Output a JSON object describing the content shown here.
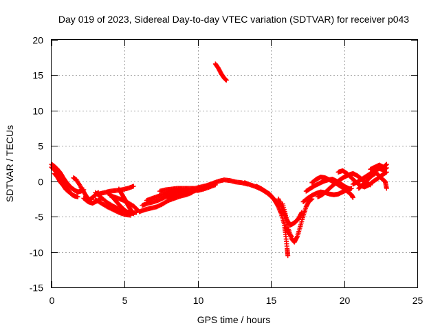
{
  "chart_data": {
    "type": "scatter",
    "title": "Day 019 of 2023, Sidereal Day-to-day VTEC variation (SDTVAR) for receiver p043",
    "xlabel": "GPS time / hours",
    "ylabel": "SDTVAR / TECUs",
    "xlim": [
      0,
      25
    ],
    "ylim": [
      -15,
      20
    ],
    "xticks": [
      0,
      5,
      10,
      15,
      20,
      25
    ],
    "yticks": [
      -15,
      -10,
      -5,
      0,
      5,
      10,
      15,
      20
    ],
    "grid": true,
    "marker": "+",
    "series": [
      {
        "name": "SDTVAR",
        "color": "#ff0000",
        "tracks": [
          [
            [
              0.0,
              2.4
            ],
            [
              0.2,
              2.1
            ],
            [
              0.4,
              1.7
            ],
            [
              0.6,
              1.2
            ],
            [
              0.8,
              0.5
            ],
            [
              1.0,
              -0.1
            ],
            [
              1.2,
              -0.6
            ],
            [
              1.4,
              -1.0
            ],
            [
              1.6,
              -1.3
            ],
            [
              1.8,
              -1.5
            ],
            [
              2.0,
              -1.4
            ],
            [
              2.2,
              -1.2
            ]
          ],
          [
            [
              0.0,
              2.0
            ],
            [
              0.2,
              1.6
            ],
            [
              0.4,
              1.1
            ],
            [
              0.6,
              0.4
            ],
            [
              0.8,
              -0.3
            ],
            [
              1.0,
              -0.9
            ],
            [
              1.2,
              -1.4
            ],
            [
              1.4,
              -1.9
            ],
            [
              1.6,
              -2.1
            ],
            [
              1.8,
              -2.2
            ]
          ],
          [
            [
              0.2,
              1.1
            ],
            [
              0.4,
              0.6
            ],
            [
              0.6,
              -0.1
            ],
            [
              0.8,
              -0.6
            ],
            [
              1.0,
              -1.2
            ],
            [
              1.3,
              -1.7
            ]
          ],
          [
            [
              1.5,
              0.5
            ],
            [
              1.7,
              0.2
            ],
            [
              2.0,
              -0.8
            ],
            [
              2.2,
              -1.5
            ],
            [
              2.4,
              -2.2
            ],
            [
              2.6,
              -2.6
            ],
            [
              2.8,
              -2.3
            ],
            [
              3.0,
              -1.9
            ],
            [
              3.2,
              -1.6
            ]
          ],
          [
            [
              2.2,
              -2.4
            ],
            [
              2.5,
              -2.9
            ],
            [
              2.8,
              -3.1
            ],
            [
              3.1,
              -2.8
            ],
            [
              3.4,
              -2.4
            ]
          ],
          [
            [
              3.0,
              -1.6
            ],
            [
              3.4,
              -2.3
            ],
            [
              3.8,
              -3.0
            ],
            [
              4.2,
              -3.5
            ],
            [
              4.6,
              -3.9
            ],
            [
              5.0,
              -4.2
            ],
            [
              5.4,
              -4.5
            ],
            [
              5.8,
              -4.4
            ]
          ],
          [
            [
              3.0,
              -2.6
            ],
            [
              3.4,
              -3.1
            ],
            [
              3.8,
              -3.6
            ],
            [
              4.2,
              -4.0
            ],
            [
              4.6,
              -4.4
            ],
            [
              5.0,
              -4.7
            ],
            [
              5.4,
              -4.8
            ]
          ],
          [
            [
              3.2,
              -1.8
            ],
            [
              3.6,
              -1.6
            ],
            [
              4.0,
              -1.4
            ],
            [
              4.4,
              -1.3
            ],
            [
              4.8,
              -1.2
            ],
            [
              5.2,
              -1.0
            ],
            [
              5.6,
              -0.7
            ]
          ],
          [
            [
              3.8,
              -1.5
            ],
            [
              4.1,
              -2.1
            ],
            [
              4.4,
              -2.8
            ],
            [
              4.7,
              -3.5
            ],
            [
              5.0,
              -4.1
            ],
            [
              5.3,
              -4.5
            ]
          ],
          [
            [
              4.6,
              -1.1
            ],
            [
              4.8,
              -1.8
            ],
            [
              5.0,
              -2.5
            ],
            [
              5.2,
              -3.3
            ],
            [
              5.4,
              -4.0
            ],
            [
              5.6,
              -4.6
            ]
          ],
          [
            [
              4.0,
              -2.0
            ],
            [
              4.4,
              -2.3
            ],
            [
              4.8,
              -2.6
            ],
            [
              5.2,
              -3.0
            ],
            [
              5.6,
              -3.5
            ],
            [
              5.9,
              -4.1
            ]
          ],
          [
            [
              6.0,
              -4.3
            ],
            [
              6.4,
              -4.0
            ],
            [
              6.8,
              -3.8
            ],
            [
              7.2,
              -3.6
            ],
            [
              7.6,
              -3.2
            ],
            [
              8.0,
              -2.7
            ],
            [
              8.4,
              -2.4
            ],
            [
              8.8,
              -2.1
            ],
            [
              9.2,
              -1.9
            ],
            [
              9.6,
              -1.6
            ]
          ],
          [
            [
              6.2,
              -3.4
            ],
            [
              6.6,
              -3.1
            ],
            [
              7.0,
              -2.9
            ],
            [
              7.4,
              -2.6
            ],
            [
              7.8,
              -2.2
            ],
            [
              8.2,
              -1.9
            ],
            [
              8.6,
              -1.6
            ],
            [
              9.0,
              -1.4
            ],
            [
              9.4,
              -1.2
            ]
          ],
          [
            [
              6.5,
              -2.7
            ],
            [
              6.9,
              -2.4
            ],
            [
              7.3,
              -2.1
            ],
            [
              7.7,
              -1.8
            ],
            [
              8.1,
              -1.5
            ],
            [
              8.5,
              -1.3
            ],
            [
              8.9,
              -1.1
            ]
          ],
          [
            [
              7.4,
              -1.4
            ],
            [
              7.8,
              -1.2
            ],
            [
              8.2,
              -1.1
            ],
            [
              8.6,
              -1.0
            ],
            [
              9.0,
              -1.0
            ],
            [
              9.4,
              -1.0
            ],
            [
              9.8,
              -1.0
            ],
            [
              10.2,
              -0.8
            ],
            [
              10.6,
              -0.6
            ],
            [
              11.0,
              -0.3
            ],
            [
              11.4,
              0.0
            ],
            [
              11.8,
              0.2
            ],
            [
              12.2,
              0.1
            ],
            [
              12.6,
              -0.1
            ],
            [
              13.0,
              -0.2
            ],
            [
              13.4,
              -0.4
            ]
          ],
          [
            [
              8.0,
              -2.4
            ],
            [
              8.4,
              -2.1
            ],
            [
              8.8,
              -1.9
            ],
            [
              9.2,
              -1.7
            ],
            [
              9.6,
              -1.5
            ],
            [
              10.0,
              -1.2
            ],
            [
              10.4,
              -0.9
            ],
            [
              10.8,
              -0.6
            ],
            [
              11.2,
              -0.3
            ]
          ],
          [
            [
              9.6,
              -1.1
            ],
            [
              10.0,
              -1.3
            ],
            [
              10.4,
              -1.1
            ],
            [
              10.8,
              -0.8
            ],
            [
              11.2,
              -0.5
            ]
          ],
          [
            [
              11.2,
              16.6
            ],
            [
              11.4,
              16.0
            ],
            [
              11.6,
              15.2
            ],
            [
              11.8,
              14.6
            ],
            [
              11.95,
              14.3
            ]
          ],
          [
            [
              13.2,
              -0.2
            ],
            [
              13.6,
              -0.5
            ],
            [
              14.0,
              -0.8
            ],
            [
              14.4,
              -1.2
            ],
            [
              14.7,
              -1.6
            ],
            [
              15.0,
              -2.1
            ],
            [
              15.3,
              -2.8
            ],
            [
              15.5,
              -3.6
            ],
            [
              15.7,
              -4.6
            ],
            [
              15.9,
              -6.0
            ],
            [
              16.0,
              -7.5
            ],
            [
              16.1,
              -9.5
            ],
            [
              16.15,
              -10.5
            ]
          ],
          [
            [
              14.0,
              -0.7
            ],
            [
              14.3,
              -1.0
            ],
            [
              14.6,
              -1.4
            ],
            [
              14.9,
              -1.8
            ],
            [
              15.2,
              -2.5
            ],
            [
              15.4,
              -3.2
            ]
          ],
          [
            [
              15.5,
              -2.5
            ],
            [
              15.7,
              -3.4
            ],
            [
              15.9,
              -4.5
            ],
            [
              16.1,
              -5.5
            ],
            [
              16.3,
              -6.2
            ],
            [
              16.5,
              -6.0
            ],
            [
              16.7,
              -5.7
            ],
            [
              16.9,
              -5.2
            ],
            [
              17.1,
              -4.4
            ]
          ],
          [
            [
              15.8,
              -3.2
            ],
            [
              16.0,
              -4.8
            ],
            [
              16.2,
              -6.8
            ],
            [
              16.4,
              -8.1
            ],
            [
              16.6,
              -8.6
            ],
            [
              16.8,
              -7.8
            ],
            [
              17.0,
              -6.4
            ],
            [
              17.2,
              -4.9
            ],
            [
              17.4,
              -3.6
            ],
            [
              17.6,
              -2.8
            ],
            [
              17.8,
              -2.5
            ]
          ],
          [
            [
              16.0,
              -6.5
            ],
            [
              16.2,
              -7.3
            ],
            [
              16.4,
              -7.8
            ]
          ],
          [
            [
              17.2,
              -2.9
            ],
            [
              17.5,
              -2.4
            ],
            [
              17.8,
              -2.0
            ],
            [
              18.1,
              -1.7
            ],
            [
              18.4,
              -1.5
            ],
            [
              18.7,
              -1.6
            ],
            [
              19.0,
              -1.8
            ],
            [
              19.3,
              -1.9
            ],
            [
              19.6,
              -1.8
            ],
            [
              19.9,
              -1.5
            ],
            [
              20.2,
              -1.2
            ],
            [
              20.5,
              -1.0
            ]
          ],
          [
            [
              17.4,
              -1.4
            ],
            [
              17.7,
              -1.0
            ],
            [
              18.0,
              -0.6
            ],
            [
              18.3,
              -0.3
            ],
            [
              18.6,
              0.0
            ],
            [
              18.9,
              0.2
            ],
            [
              19.2,
              0.3
            ],
            [
              19.5,
              0.0
            ],
            [
              19.8,
              -0.4
            ],
            [
              20.1,
              -0.8
            ],
            [
              20.4,
              -1.1
            ]
          ],
          [
            [
              17.8,
              -0.2
            ],
            [
              18.1,
              0.3
            ],
            [
              18.4,
              0.6
            ],
            [
              18.7,
              0.5
            ],
            [
              19.0,
              0.2
            ],
            [
              19.3,
              -0.1
            ],
            [
              19.6,
              -0.5
            ],
            [
              19.9,
              -0.9
            ],
            [
              20.2,
              -1.4
            ],
            [
              20.5,
              -1.9
            ],
            [
              20.6,
              -2.3
            ]
          ],
          [
            [
              18.2,
              -2.2
            ],
            [
              18.5,
              -1.9
            ],
            [
              18.8,
              -1.4
            ],
            [
              19.1,
              -0.8
            ],
            [
              19.4,
              -0.3
            ],
            [
              19.7,
              0.2
            ],
            [
              20.0,
              0.6
            ],
            [
              20.3,
              0.9
            ],
            [
              20.6,
              1.1
            ],
            [
              20.9,
              0.8
            ],
            [
              21.2,
              0.3
            ],
            [
              21.5,
              -0.2
            ],
            [
              21.8,
              -0.5
            ]
          ],
          [
            [
              19.6,
              1.3
            ],
            [
              19.9,
              1.5
            ],
            [
              20.2,
              1.1
            ],
            [
              20.5,
              0.5
            ],
            [
              20.8,
              -0.1
            ],
            [
              21.1,
              -0.6
            ],
            [
              21.4,
              -0.8
            ],
            [
              21.7,
              -0.5
            ],
            [
              22.0,
              0.0
            ],
            [
              22.3,
              0.4
            ],
            [
              22.6,
              0.9
            ],
            [
              22.9,
              1.3
            ]
          ],
          [
            [
              20.6,
              -0.4
            ],
            [
              20.9,
              -0.1
            ],
            [
              21.2,
              0.3
            ],
            [
              21.5,
              0.7
            ],
            [
              21.8,
              1.1
            ],
            [
              22.1,
              1.5
            ],
            [
              22.4,
              1.8
            ],
            [
              22.7,
              1.6
            ],
            [
              22.9,
              1.9
            ]
          ],
          [
            [
              21.0,
              -1.0
            ],
            [
              21.3,
              -0.4
            ],
            [
              21.6,
              0.2
            ],
            [
              21.9,
              0.8
            ],
            [
              22.2,
              1.2
            ],
            [
              22.5,
              0.5
            ],
            [
              22.8,
              0.0
            ],
            [
              22.9,
              -1.0
            ]
          ],
          [
            [
              21.8,
              1.7
            ],
            [
              22.1,
              2.0
            ],
            [
              22.4,
              2.3
            ],
            [
              22.7,
              2.0
            ],
            [
              22.9,
              2.4
            ]
          ]
        ]
      }
    ]
  }
}
